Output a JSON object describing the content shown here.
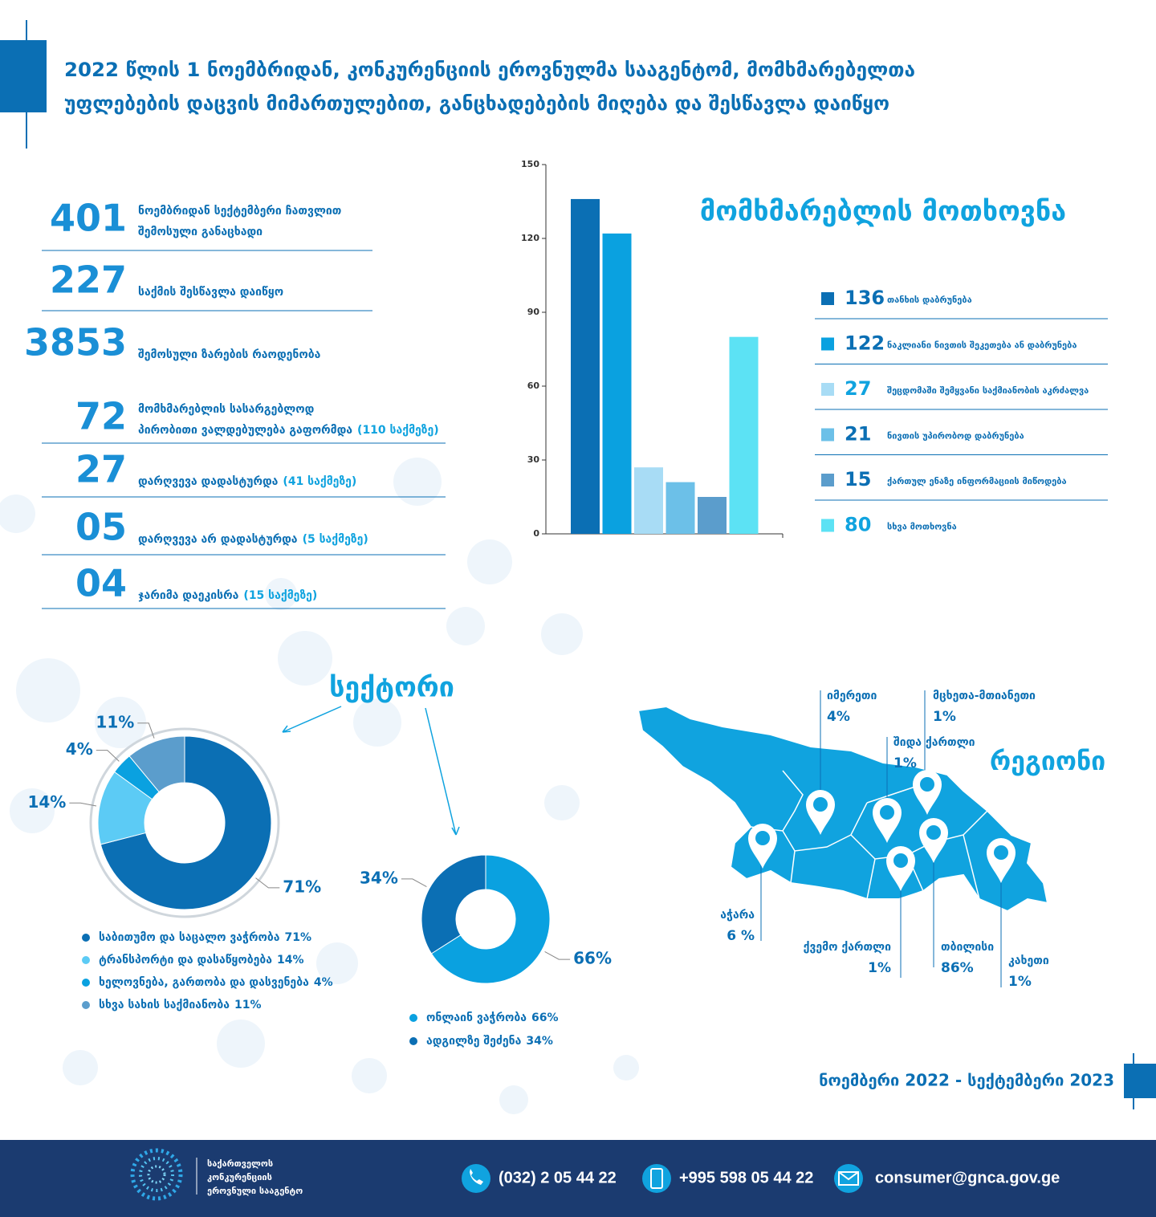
{
  "header": {
    "title_lines": [
      "2022 წლის 1 ნოემბრიდან, კონკურენციის ეროვნულმა სააგენტომ, მომხმარებელთა",
      "უფლებების დაცვის მიმართულებით, განცხადებების მიღება და შესწავლა დაიწყო"
    ]
  },
  "stats": [
    {
      "number": "401",
      "label_lines": [
        "ნოემბრიდან სექტემბერი ჩათვლით",
        "შემოსული განაცხადი"
      ]
    },
    {
      "number": "227",
      "label_lines": [
        "საქმის შესწავლა დაიწყო"
      ]
    },
    {
      "number": "3853",
      "label_lines": [
        "შემოსული ზარების რაოდენობა"
      ]
    },
    {
      "number": "72",
      "label_lines": [
        "მომხმარებლის სასარგებლოდ",
        "პირობითი ვალდებულება გაფორმდა"
      ],
      "note": "(110 საქმეზე)"
    },
    {
      "number": "27",
      "label_lines": [
        "დარღვევა დადასტურდა"
      ],
      "note": "(41 საქმეზე)"
    },
    {
      "number": "05",
      "label_lines": [
        "დარღვევა არ დადასტურდა"
      ],
      "note": "(5 საქმეზე)"
    },
    {
      "number": "04",
      "label_lines": [
        "ჯარიმა დაეკისრა"
      ],
      "note": "(15 საქმეზე)"
    }
  ],
  "chart_data": [
    {
      "type": "bar",
      "title": "მომხმარებლის მოთხოვნა",
      "categories": [
        "თანხის დაბრუნება",
        "ნაკლიანი ნივთის შეკეთება ან დაბრუნება",
        "შეცდომაში შემყვანი საქმიანობის აკრძალვა",
        "ნივთის უპირობოდ დაბრუნება",
        "ქართულ ენაზე ინფორმაციის მიწოდება",
        "სხვა მოთხოვნა"
      ],
      "values": [
        136,
        122,
        27,
        21,
        15,
        80
      ],
      "colors": [
        "#0b6fb4",
        "#0aa1e0",
        "#a8dcf5",
        "#6cc0e8",
        "#5b9dcc",
        "#5ce2f4"
      ],
      "ylim": [
        0,
        150
      ],
      "yticks": [
        0,
        30,
        60,
        90,
        120,
        150
      ]
    },
    {
      "type": "pie",
      "title": "სექტორი",
      "categories": [
        "საბითუმო და საცალო ვაჭრობა",
        "ტრანსპორტი და დასაწყობება",
        "ხელოვნება, გართობა და დასვენება",
        "სხვა სახის საქმიანობა"
      ],
      "values": [
        71,
        14,
        4,
        11
      ],
      "value_labels": [
        "71%",
        "14%",
        "4%",
        "11%"
      ],
      "colors": [
        "#0b6fb4",
        "#5ccbf5",
        "#0aa1e0",
        "#5b9dcc"
      ]
    },
    {
      "type": "pie",
      "categories": [
        "ონლაინ ვაჭრობა",
        "ადგილზე შეძენა"
      ],
      "values": [
        66,
        34
      ],
      "value_labels": [
        "66%",
        "34%"
      ],
      "colors": [
        "#0aa1e0",
        "#0b6fb4"
      ]
    }
  ],
  "region_map": {
    "title": "რეგიონი",
    "regions": [
      {
        "name": "იმერეთი",
        "share": "4%"
      },
      {
        "name": "მცხეთა-მთიანეთი",
        "share": "1%"
      },
      {
        "name": "შიდა ქართლი",
        "share": "1%"
      },
      {
        "name": "აჭარა",
        "share": "6 %"
      },
      {
        "name": "ქვემო ქართლი",
        "share": "1%"
      },
      {
        "name": "თბილისი",
        "share": "86%"
      },
      {
        "name": "კახეთი",
        "share": "1%"
      }
    ]
  },
  "period": "ნოემბერი 2022 - სექტემბერი 2023",
  "footer": {
    "org_lines": [
      "საქართველოს",
      "კონკურენციის",
      "ეროვნული სააგენტო"
    ],
    "phone": "(032) 2 05 44 22",
    "mobile": "+995 598 05 44 22",
    "email": "consumer@gnca.gov.ge"
  }
}
